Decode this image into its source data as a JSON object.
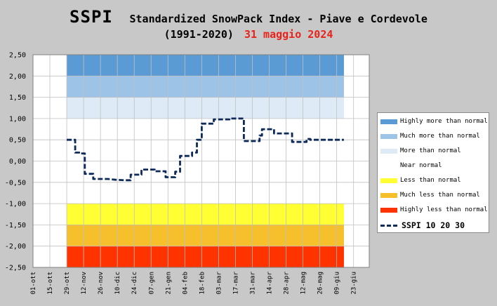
{
  "header": {
    "title": "SSPI",
    "subtitle": "Standardized SnowPack Index - Piave e Cordevole",
    "period": "(1991-2020)",
    "date": "31 maggio 2024",
    "date_color": "#e8231c"
  },
  "chart_data": {
    "type": "line",
    "title": "SSPI Standardized SnowPack Index - Piave e Cordevole (1991-2020) 31 maggio 2024",
    "ylim": [
      -2.5,
      2.5
    ],
    "yticks": [
      "2,50",
      "2,00",
      "1,50",
      "1,00",
      "0,50",
      "0,00",
      "-0,50",
      "-1,00",
      "-1,50",
      "-2,00",
      "-2,50"
    ],
    "ytick_values": [
      2.5,
      2.0,
      1.5,
      1.0,
      0.5,
      0.0,
      -0.5,
      -1.0,
      -1.5,
      -2.0,
      -2.5
    ],
    "x_start": "01-ott",
    "x_span_days": 279,
    "xticks": [
      "01-ott",
      "15-ott",
      "29-ott",
      "12-nov",
      "26-nov",
      "10-dic",
      "24-dic",
      "07-gen",
      "21-gen",
      "04-feb",
      "18-feb",
      "03-mar",
      "17-mar",
      "31-mar",
      "14-apr",
      "28-apr",
      "12-mag",
      "26-mag",
      "09-giu",
      "23-giu"
    ],
    "band_day_range": [
      28,
      258
    ],
    "bands": [
      {
        "name": "Highly more than normal",
        "from": 2.0,
        "to": 2.5,
        "color": "#5b9bd5"
      },
      {
        "name": "Much more than normal",
        "from": 1.5,
        "to": 2.0,
        "color": "#9dc3e6"
      },
      {
        "name": "More than normal",
        "from": 1.0,
        "to": 1.5,
        "color": "#deebf7"
      },
      {
        "name": "Near normal",
        "from": -1.0,
        "to": 1.0,
        "color": "#ffffff"
      },
      {
        "name": "Less than normal",
        "from": -1.5,
        "to": -1.0,
        "color": "#ffff33"
      },
      {
        "name": "Much less than normal",
        "from": -2.0,
        "to": -1.5,
        "color": "#f5c02c"
      },
      {
        "name": "Highly less than normal",
        "from": -2.5,
        "to": -2.0,
        "color": "#ff3300"
      }
    ],
    "series": [
      {
        "name": "SSPI 10 20 30",
        "color": "#0d2a5a",
        "style": "dashed",
        "x_days": [
          28,
          35,
          35,
          40,
          40,
          43,
          43,
          48,
          48,
          50,
          50,
          55,
          55,
          62,
          62,
          69,
          69,
          76,
          76,
          81,
          81,
          85,
          85,
          90,
          90,
          96,
          96,
          101,
          101,
          103,
          103,
          110,
          110,
          118,
          118,
          122,
          122,
          132,
          132,
          136,
          136,
          140,
          140,
          147,
          147,
          150,
          150,
          156,
          156,
          163,
          163,
          170,
          170,
          175,
          175,
          180,
          180,
          188,
          188,
          190,
          190,
          197,
          197,
          200,
          200,
          206,
          206,
          215,
          215,
          220,
          220,
          227,
          227,
          230,
          230,
          235,
          235,
          241,
          241,
          245,
          245,
          252,
          252,
          258
        ],
        "values": [
          0.5,
          0.5,
          0.2,
          0.2,
          0.18,
          0.18,
          -0.3,
          -0.3,
          -0.3,
          -0.3,
          -0.42,
          -0.42,
          -0.42,
          -0.42,
          -0.42,
          -0.44,
          -0.44,
          -0.45,
          -0.45,
          -0.45,
          -0.32,
          -0.32,
          -0.32,
          -0.32,
          -0.2,
          -0.2,
          -0.2,
          -0.2,
          -0.24,
          -0.24,
          -0.24,
          -0.24,
          -0.38,
          -0.38,
          -0.25,
          -0.25,
          0.12,
          0.12,
          0.2,
          0.2,
          0.5,
          0.5,
          0.88,
          0.88,
          0.88,
          0.88,
          0.98,
          0.98,
          0.98,
          0.98,
          1.0,
          1.0,
          1.0,
          1.0,
          0.47,
          0.47,
          0.47,
          0.47,
          0.6,
          0.6,
          0.75,
          0.75,
          0.75,
          0.75,
          0.65,
          0.65,
          0.65,
          0.65,
          0.45,
          0.45,
          0.45,
          0.45,
          0.52,
          0.52,
          0.5,
          0.5,
          0.5,
          0.5,
          0.5,
          0.5,
          0.5,
          0.5,
          0.5,
          0.5
        ]
      }
    ],
    "legend": "right"
  },
  "legend": {
    "items": [
      {
        "label": "Highly more than normal",
        "color": "#5b9bd5"
      },
      {
        "label": "Much more than normal",
        "color": "#9dc3e6"
      },
      {
        "label": "More than normal",
        "color": "#deebf7"
      },
      {
        "label": "Near normal",
        "color": "#ffffff"
      },
      {
        "label": "Less than normal",
        "color": "#ffff33"
      },
      {
        "label": "Much less than normal",
        "color": "#f5c02c"
      },
      {
        "label": "Highly less than normal",
        "color": "#ff3300"
      }
    ],
    "series_label": "SSPI 10 20 30"
  }
}
